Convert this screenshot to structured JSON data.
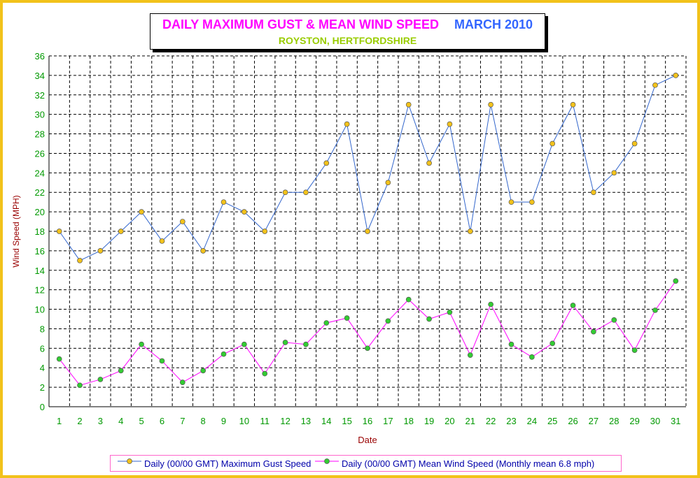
{
  "chart_data": {
    "type": "line",
    "title": "DAILY MAXIMUM GUST & MEAN WIND SPEED",
    "period": "MARCH 2010",
    "subtitle": "ROYSTON, HERTFORDSHIRE",
    "xlabel": "Date",
    "ylabel": "Wind Speed (MPH)",
    "x": [
      1,
      2,
      3,
      4,
      5,
      6,
      7,
      8,
      9,
      10,
      11,
      12,
      13,
      14,
      15,
      16,
      17,
      18,
      19,
      20,
      21,
      22,
      23,
      24,
      25,
      26,
      27,
      28,
      29,
      30,
      31
    ],
    "ylim": [
      0,
      36
    ],
    "ytick_step": 2,
    "grid": true,
    "legend_position": "bottom",
    "series": [
      {
        "name": "Daily (00/00 GMT) Maximum Gust Speed",
        "line_color": "#3366cc",
        "marker_color": "#f2c21b",
        "values": [
          18,
          15,
          16,
          18,
          20,
          17,
          19,
          16,
          21,
          20,
          18,
          22,
          22,
          25,
          29,
          18,
          23,
          31,
          25,
          29,
          18,
          31,
          21,
          21,
          27,
          31,
          22,
          24,
          27,
          33,
          34
        ]
      },
      {
        "name": "Daily (00/00 GMT) Mean Wind Speed (Monthly mean 6.8 mph)",
        "line_color": "#ff00ff",
        "marker_color": "#33cc33",
        "values": [
          4.9,
          2.2,
          2.8,
          3.7,
          6.4,
          4.7,
          2.5,
          3.7,
          5.4,
          6.4,
          3.4,
          6.6,
          6.4,
          8.6,
          9.1,
          6.0,
          8.8,
          11.0,
          9.0,
          9.7,
          5.3,
          10.5,
          6.4,
          5.1,
          6.5,
          10.4,
          7.7,
          8.9,
          5.8,
          9.9,
          12.9
        ]
      }
    ]
  },
  "colors": {
    "frame_border": "#f2c21b",
    "axis_tick_label": "#009900",
    "axis_title": "#990000",
    "legend_text": "#0000aa",
    "legend_border": "#ff66cc"
  }
}
